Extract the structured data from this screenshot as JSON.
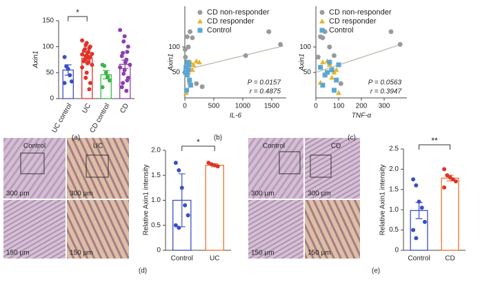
{
  "chart_data": [
    {
      "type": "bar",
      "panel_label": "(a)",
      "y_label": "Axin1",
      "categories": [
        "UC control",
        "UC",
        "CD control",
        "CD"
      ],
      "values": [
        55,
        78,
        46,
        66
      ],
      "errors": [
        10,
        5,
        8,
        8
      ],
      "colors": [
        "#3b4fc4",
        "#e0332a",
        "#3db54a",
        "#8e3fb0"
      ],
      "points": [
        [
          80,
          62,
          57,
          45,
          33,
          30
        ],
        [
          112,
          107,
          103,
          100,
          97,
          95,
          92,
          90,
          88,
          86,
          85,
          83,
          82,
          80,
          78,
          75,
          72,
          70,
          68,
          65,
          60,
          50,
          40,
          30,
          18
        ],
        [
          65,
          63,
          50,
          42,
          35,
          22
        ],
        [
          132,
          120,
          110,
          100,
          90,
          88,
          82,
          75,
          70,
          65,
          60,
          55,
          48,
          40,
          35,
          30,
          22,
          15
        ]
      ],
      "significance": "*",
      "ylim": [
        0,
        150
      ],
      "yticks": [
        0,
        50,
        100,
        150
      ]
    },
    {
      "type": "scatter",
      "panel_label": "(b)",
      "x_label": "IL-6",
      "y_label": "Axin1",
      "series": [
        {
          "name": "CD non-responder",
          "color": "#9a9a9a",
          "marker": "circle",
          "x": [
            1450,
            1650,
            1050,
            40,
            90,
            60,
            130,
            10,
            200,
            5,
            300
          ],
          "values": [
            130,
            105,
            83,
            120,
            130,
            100,
            118,
            80,
            28,
            95,
            22
          ]
        },
        {
          "name": "CD responder",
          "color": "#e3b52a",
          "marker": "triangle",
          "x": [
            100,
            200,
            150,
            60,
            130,
            40,
            80,
            250,
            20
          ],
          "values": [
            70,
            72,
            65,
            50,
            55,
            45,
            30,
            70,
            10
          ]
        },
        {
          "name": "Control",
          "color": "#5aa6d6",
          "marker": "square",
          "x": [
            20,
            40,
            60,
            80,
            100,
            10,
            50,
            30,
            70
          ],
          "values": [
            60,
            45,
            55,
            35,
            25,
            50,
            70,
            15,
            65
          ]
        }
      ],
      "trend": {
        "x": [
          0,
          1700
        ],
        "y": [
          55,
          102
        ]
      },
      "stats": [
        "P = 0.0157",
        "r = 0.4875"
      ],
      "xlim": [
        0,
        1750
      ],
      "xticks": [
        0,
        500,
        1000,
        1500
      ],
      "ylim": [
        0,
        180
      ],
      "yticks": [
        50,
        100
      ]
    },
    {
      "type": "scatter",
      "panel_label": "(c)",
      "x_label": "TNF-α",
      "y_label": "Axin1",
      "series": [
        {
          "name": "CD non-responder",
          "color": "#9a9a9a",
          "marker": "circle",
          "x": [
            330,
            370,
            80,
            20,
            40,
            60,
            30,
            10,
            110
          ],
          "values": [
            130,
            105,
            83,
            120,
            130,
            100,
            118,
            80,
            28
          ]
        },
        {
          "name": "CD responder",
          "color": "#e3b52a",
          "marker": "triangle",
          "x": [
            30,
            50,
            60,
            80,
            90,
            40,
            20,
            70,
            100
          ],
          "values": [
            70,
            72,
            65,
            50,
            55,
            45,
            30,
            40,
            10
          ]
        },
        {
          "name": "Control",
          "color": "#5aa6d6",
          "marker": "square",
          "x": [
            20,
            40,
            70,
            90,
            30,
            50,
            60,
            80,
            100
          ],
          "values": [
            60,
            45,
            55,
            35,
            25,
            50,
            70,
            15,
            65
          ]
        }
      ],
      "trend": {
        "x": [
          0,
          380
        ],
        "y": [
          50,
          106
        ]
      },
      "stats": [
        "P = 0.0563",
        "r = 0.3947"
      ],
      "xlim": [
        0,
        400
      ],
      "xticks": [
        0,
        100,
        200,
        300
      ],
      "ylim": [
        0,
        180
      ],
      "yticks": [
        50,
        100
      ]
    },
    {
      "type": "bar",
      "panel_label": "(d)",
      "y_label": "Relative Axin1 intensity",
      "categories": [
        "Control",
        "UC"
      ],
      "values": [
        1.0,
        1.7
      ],
      "errors": [
        0.53,
        0.03
      ],
      "colors": [
        "#3b4fc4",
        "#e8742a"
      ],
      "point_colors": [
        "#3b4fc4",
        "#e0332a"
      ],
      "points": [
        [
          1.75,
          1.6,
          1.25,
          0.9,
          0.7,
          0.5,
          0.45
        ],
        [
          1.75,
          1.72,
          1.7,
          1.68
        ]
      ],
      "significance": "*",
      "ylim": [
        0,
        2.0
      ],
      "yticks": [
        0,
        0.5,
        {
          "value": 1,
          "label": "1.0"
        },
        1.5,
        {
          "value": 2,
          "label": "2.0"
        }
      ]
    },
    {
      "type": "bar",
      "panel_label": "(e)",
      "y_label": "Relative Axin1 intensity",
      "categories": [
        "Control",
        "CD"
      ],
      "values": [
        0.98,
        1.78
      ],
      "errors": [
        0.2,
        0.07
      ],
      "colors": [
        "#3b4fc4",
        "#e8742a"
      ],
      "point_colors": [
        "#3b4fc4",
        "#e0332a"
      ],
      "points": [
        [
          1.75,
          1.6,
          1.2,
          1.05,
          0.7,
          0.5,
          0.3
        ],
        [
          2.0,
          1.85,
          1.8,
          1.75,
          1.7,
          1.55
        ]
      ],
      "significance": "**",
      "ylim": [
        0,
        2.5
      ],
      "yticks": [
        0,
        0.5,
        {
          "value": 1,
          "label": "1.0"
        },
        1.5,
        {
          "value": 2,
          "label": "2.0"
        },
        2.5
      ]
    }
  ],
  "micrographs": [
    {
      "columns": [
        "Control",
        "UC"
      ],
      "scale_bars": [
        "300 μm",
        "300 μm",
        "150 μm",
        "150 μm"
      ]
    },
    {
      "columns": [
        "Control",
        "CD"
      ],
      "scale_bars": [
        "300 μm",
        "300 μm",
        "150 μm",
        "150 μm"
      ]
    }
  ]
}
